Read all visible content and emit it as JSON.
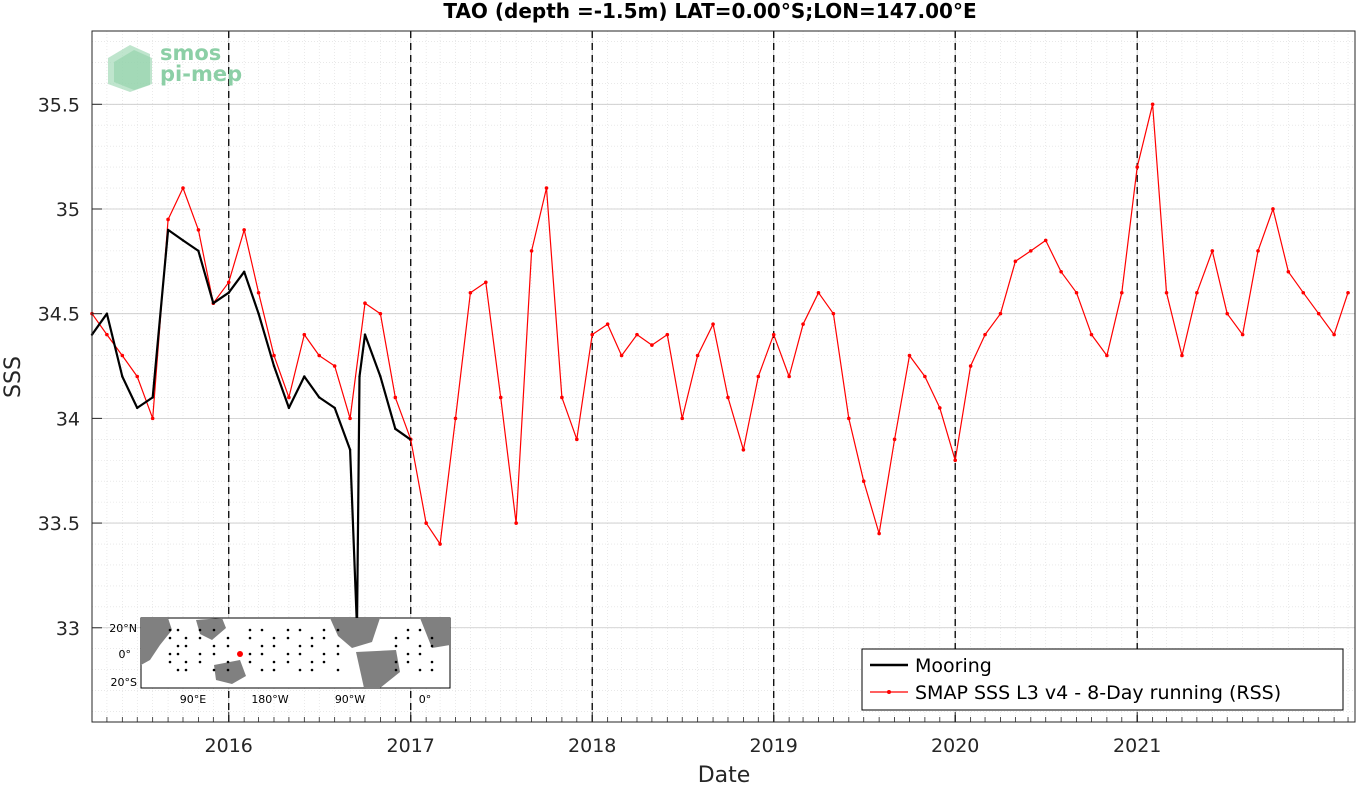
{
  "chart_data": {
    "type": "line",
    "title": "TAO (depth =-1.5m) LAT=0.00°S;LON=147.00°E",
    "xlabel": "Date",
    "ylabel": "SSS",
    "xlim": [
      "2015-04-01",
      "2022-03-15"
    ],
    "ylim": [
      32.55,
      35.85
    ],
    "x_ticks": [
      "2016-01-01",
      "2017-01-01",
      "2018-01-01",
      "2019-01-01",
      "2020-01-01",
      "2021-01-01"
    ],
    "x_tick_labels": [
      "2016",
      "2017",
      "2018",
      "2019",
      "2020",
      "2021"
    ],
    "y_ticks": [
      33,
      33.5,
      34,
      34.5,
      35,
      35.5
    ],
    "y_tick_labels": [
      "33",
      "33.5",
      "34",
      "34.5",
      "35",
      "35.5"
    ],
    "grid": true,
    "minor_grid": true,
    "year_boundary_lines": [
      "2016-01-01",
      "2017-01-01",
      "2018-01-01",
      "2019-01-01",
      "2020-01-01",
      "2021-01-01"
    ],
    "legend_position": "bottom-right",
    "series": [
      {
        "name": "Mooring",
        "color": "#000000",
        "x": [
          "2015-04-01",
          "2015-05-01",
          "2015-06-01",
          "2015-07-01",
          "2015-08-01",
          "2015-09-01",
          "2015-10-01",
          "2015-11-01",
          "2015-12-01",
          "2016-01-01",
          "2016-02-01",
          "2016-03-01",
          "2016-04-01",
          "2016-05-01",
          "2016-06-01",
          "2016-07-01",
          "2016-08-01",
          "2016-09-01",
          "2016-09-15",
          "2016-09-20",
          "2016-10-01",
          "2016-11-01",
          "2016-12-01",
          "2016-12-31"
        ],
        "values": [
          34.4,
          34.5,
          34.2,
          34.05,
          34.1,
          34.9,
          34.85,
          34.8,
          34.55,
          34.6,
          34.7,
          34.5,
          34.25,
          34.05,
          34.2,
          34.1,
          34.05,
          33.85,
          33.0,
          34.2,
          34.4,
          34.2,
          33.95,
          33.9
        ]
      },
      {
        "name": "SMAP SSS L3 v4 - 8-Day running (RSS)",
        "color": "#ff0000",
        "x": [
          "2015-04-01",
          "2015-05-01",
          "2015-06-01",
          "2015-07-01",
          "2015-08-01",
          "2015-09-01",
          "2015-10-01",
          "2015-11-01",
          "2015-12-01",
          "2016-01-01",
          "2016-02-01",
          "2016-03-01",
          "2016-04-01",
          "2016-05-01",
          "2016-06-01",
          "2016-07-01",
          "2016-08-01",
          "2016-09-01",
          "2016-10-01",
          "2016-11-01",
          "2016-12-01",
          "2017-01-01",
          "2017-02-01",
          "2017-03-01",
          "2017-04-01",
          "2017-05-01",
          "2017-06-01",
          "2017-07-01",
          "2017-08-01",
          "2017-09-01",
          "2017-10-01",
          "2017-11-01",
          "2017-12-01",
          "2018-01-01",
          "2018-02-01",
          "2018-03-01",
          "2018-04-01",
          "2018-05-01",
          "2018-06-01",
          "2018-07-01",
          "2018-08-01",
          "2018-09-01",
          "2018-10-01",
          "2018-11-01",
          "2018-12-01",
          "2019-01-01",
          "2019-02-01",
          "2019-03-01",
          "2019-04-01",
          "2019-05-01",
          "2019-06-01",
          "2019-07-01",
          "2019-08-01",
          "2019-09-01",
          "2019-10-01",
          "2019-11-01",
          "2019-12-01",
          "2020-01-01",
          "2020-02-01",
          "2020-03-01",
          "2020-04-01",
          "2020-05-01",
          "2020-06-01",
          "2020-07-01",
          "2020-08-01",
          "2020-09-01",
          "2020-10-01",
          "2020-11-01",
          "2020-12-01",
          "2021-01-01",
          "2021-02-01",
          "2021-03-01",
          "2021-04-01",
          "2021-05-01",
          "2021-06-01",
          "2021-07-01",
          "2021-08-01",
          "2021-09-01",
          "2021-10-01",
          "2021-11-01",
          "2021-12-01",
          "2022-01-01",
          "2022-02-01",
          "2022-03-01"
        ],
        "values": [
          34.5,
          34.4,
          34.3,
          34.2,
          34.0,
          34.95,
          35.1,
          34.9,
          34.55,
          34.65,
          34.9,
          34.6,
          34.3,
          34.1,
          34.4,
          34.3,
          34.25,
          34.0,
          34.55,
          34.5,
          34.1,
          33.9,
          33.5,
          33.4,
          34.0,
          34.6,
          34.65,
          34.1,
          33.5,
          34.8,
          35.1,
          34.1,
          33.9,
          34.4,
          34.45,
          34.3,
          34.4,
          34.35,
          34.4,
          34.0,
          34.3,
          34.45,
          34.1,
          33.85,
          34.2,
          34.4,
          34.2,
          34.45,
          34.6,
          34.5,
          34.0,
          33.7,
          33.45,
          33.9,
          34.3,
          34.2,
          34.05,
          33.8,
          34.25,
          34.4,
          34.5,
          34.75,
          34.8,
          34.85,
          34.7,
          34.6,
          34.4,
          34.3,
          34.6,
          35.2,
          35.5,
          34.6,
          34.3,
          34.6,
          34.8,
          34.5,
          34.4,
          34.8,
          35.0,
          34.7,
          34.6,
          34.5,
          34.4,
          34.6
        ]
      }
    ]
  },
  "logo": {
    "line1": "smos",
    "line2": "pi-mep",
    "color": "#8ccfa6"
  },
  "inset_map": {
    "y_labels": [
      "20°N",
      "0°",
      "20°S"
    ],
    "x_labels": [
      "90°E",
      "180°W",
      "90°W",
      "0°"
    ],
    "land_color": "#808080",
    "highlight_color": "#ff0000"
  }
}
